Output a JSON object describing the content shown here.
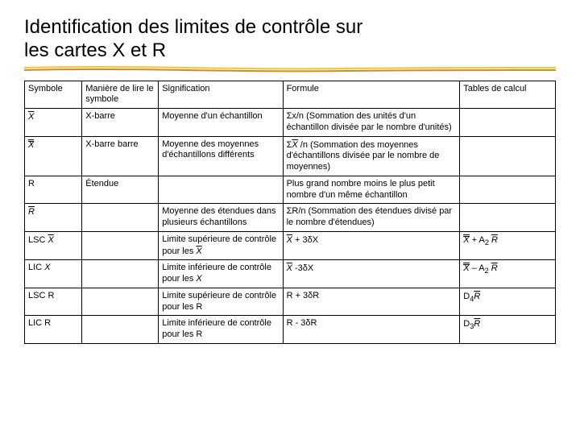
{
  "title_line1": "Identification des limites de contrôle sur",
  "title_line2": "les cartes X et R",
  "underline": {
    "stroke_top": "#f7c438",
    "stroke_bottom": "#d98a1f",
    "width": 2
  },
  "columns": [
    "Symbole",
    "Manière de lire le symbole",
    "Signification",
    "Formule",
    "Tables de calcul"
  ],
  "rows": [
    {
      "symbole": {
        "type": "xbar"
      },
      "lire": "X-barre",
      "signif": "Moyenne d'un échantillon",
      "formule": "Σx/n (Sommation des unités d'un échantillon divisée par le nombre d'unités)",
      "tables": ""
    },
    {
      "symbole": {
        "type": "xdoublebar"
      },
      "lire": "X-barre barre",
      "signif": "Moyenne des moyennes d'échantillons différents",
      "formule_prefix": "Σ",
      "formule_mid": {
        "type": "xbar"
      },
      "formule_suffix": " /n (Sommation des moyennes d'échantillons divisée par le nombre de moyennes)",
      "tables": ""
    },
    {
      "symbole": {
        "type": "text",
        "text": "R"
      },
      "lire": "Étendue",
      "signif": "",
      "formule": "Plus grand nombre moins le plus petit nombre d'un même échantillon",
      "tables": ""
    },
    {
      "symbole": {
        "type": "rbar"
      },
      "lire": "",
      "signif": "Moyenne des étendues dans plusieurs échantillons",
      "formule": "ΣR/n (Sommation des étendues divisé par le nombre d'étendues)",
      "tables": ""
    },
    {
      "symbole_prefix": "LSC ",
      "symbole_sym": {
        "type": "xbar"
      },
      "lire": "",
      "signif_prefix": "Limite supérieure de contrôle pour les ",
      "signif_sym": {
        "type": "xbar"
      },
      "formule_sym": {
        "type": "xbar"
      },
      "formule_suffix": " + 3δX",
      "tables_sym": {
        "type": "xdoublebar"
      },
      "tables_mid": " + A",
      "tables_sub": "2",
      "tables_end": " ",
      "tables_end_sym": {
        "type": "rbar"
      }
    },
    {
      "symbole_prefix": "LIC ",
      "symbole_sym": {
        "type": "xitalic"
      },
      "lire": "",
      "signif_prefix": "Limite inférieure de contrôle pour les ",
      "signif_sym": {
        "type": "xitalic"
      },
      "formule_sym": {
        "type": "xbar"
      },
      "formule_suffix": " -3δX",
      "tables_sym": {
        "type": "xdoublebar"
      },
      "tables_mid": " – A",
      "tables_sub": "2",
      "tables_end": " ",
      "tables_end_sym": {
        "type": "rbar"
      }
    },
    {
      "symbole": {
        "type": "text",
        "text": "LSC R"
      },
      "lire": "",
      "signif": "Limite supérieure de contrôle pour les R",
      "formule": "R + 3δR",
      "tables_prefix": "D",
      "tables_sub": "4",
      "tables_end_sym": {
        "type": "rbar"
      }
    },
    {
      "symbole": {
        "type": "text",
        "text": "LIC R"
      },
      "lire": "",
      "signif": "Limite inférieure de contrôle pour les R",
      "formule": "R - 3δR",
      "tables_prefix": "D",
      "tables_sub": "3",
      "tables_end_sym": {
        "type": "rbar"
      }
    }
  ]
}
